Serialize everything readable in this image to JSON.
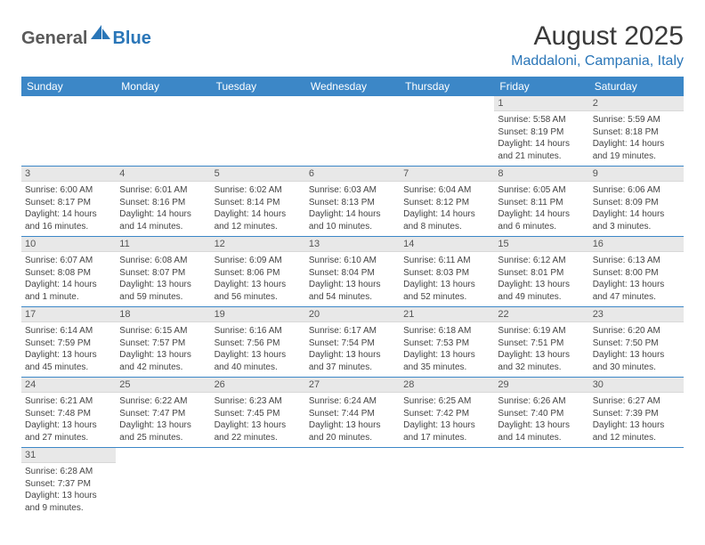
{
  "logo": {
    "text_dark": "General",
    "text_blue": "Blue"
  },
  "title": "August 2025",
  "location": "Maddaloni, Campania, Italy",
  "colors": {
    "header_bg": "#3c87c7",
    "header_fg": "#ffffff",
    "daynum_bg": "#e8e8e8",
    "row_border": "#3c87c7",
    "accent_blue": "#2a76b8",
    "logo_dark": "#5a5a5a"
  },
  "day_headers": [
    "Sunday",
    "Monday",
    "Tuesday",
    "Wednesday",
    "Thursday",
    "Friday",
    "Saturday"
  ],
  "weeks": [
    [
      {
        "day": "",
        "sunrise": "",
        "sunset": "",
        "daylight": ""
      },
      {
        "day": "",
        "sunrise": "",
        "sunset": "",
        "daylight": ""
      },
      {
        "day": "",
        "sunrise": "",
        "sunset": "",
        "daylight": ""
      },
      {
        "day": "",
        "sunrise": "",
        "sunset": "",
        "daylight": ""
      },
      {
        "day": "",
        "sunrise": "",
        "sunset": "",
        "daylight": ""
      },
      {
        "day": "1",
        "sunrise": "Sunrise: 5:58 AM",
        "sunset": "Sunset: 8:19 PM",
        "daylight": "Daylight: 14 hours and 21 minutes."
      },
      {
        "day": "2",
        "sunrise": "Sunrise: 5:59 AM",
        "sunset": "Sunset: 8:18 PM",
        "daylight": "Daylight: 14 hours and 19 minutes."
      }
    ],
    [
      {
        "day": "3",
        "sunrise": "Sunrise: 6:00 AM",
        "sunset": "Sunset: 8:17 PM",
        "daylight": "Daylight: 14 hours and 16 minutes."
      },
      {
        "day": "4",
        "sunrise": "Sunrise: 6:01 AM",
        "sunset": "Sunset: 8:16 PM",
        "daylight": "Daylight: 14 hours and 14 minutes."
      },
      {
        "day": "5",
        "sunrise": "Sunrise: 6:02 AM",
        "sunset": "Sunset: 8:14 PM",
        "daylight": "Daylight: 14 hours and 12 minutes."
      },
      {
        "day": "6",
        "sunrise": "Sunrise: 6:03 AM",
        "sunset": "Sunset: 8:13 PM",
        "daylight": "Daylight: 14 hours and 10 minutes."
      },
      {
        "day": "7",
        "sunrise": "Sunrise: 6:04 AM",
        "sunset": "Sunset: 8:12 PM",
        "daylight": "Daylight: 14 hours and 8 minutes."
      },
      {
        "day": "8",
        "sunrise": "Sunrise: 6:05 AM",
        "sunset": "Sunset: 8:11 PM",
        "daylight": "Daylight: 14 hours and 6 minutes."
      },
      {
        "day": "9",
        "sunrise": "Sunrise: 6:06 AM",
        "sunset": "Sunset: 8:09 PM",
        "daylight": "Daylight: 14 hours and 3 minutes."
      }
    ],
    [
      {
        "day": "10",
        "sunrise": "Sunrise: 6:07 AM",
        "sunset": "Sunset: 8:08 PM",
        "daylight": "Daylight: 14 hours and 1 minute."
      },
      {
        "day": "11",
        "sunrise": "Sunrise: 6:08 AM",
        "sunset": "Sunset: 8:07 PM",
        "daylight": "Daylight: 13 hours and 59 minutes."
      },
      {
        "day": "12",
        "sunrise": "Sunrise: 6:09 AM",
        "sunset": "Sunset: 8:06 PM",
        "daylight": "Daylight: 13 hours and 56 minutes."
      },
      {
        "day": "13",
        "sunrise": "Sunrise: 6:10 AM",
        "sunset": "Sunset: 8:04 PM",
        "daylight": "Daylight: 13 hours and 54 minutes."
      },
      {
        "day": "14",
        "sunrise": "Sunrise: 6:11 AM",
        "sunset": "Sunset: 8:03 PM",
        "daylight": "Daylight: 13 hours and 52 minutes."
      },
      {
        "day": "15",
        "sunrise": "Sunrise: 6:12 AM",
        "sunset": "Sunset: 8:01 PM",
        "daylight": "Daylight: 13 hours and 49 minutes."
      },
      {
        "day": "16",
        "sunrise": "Sunrise: 6:13 AM",
        "sunset": "Sunset: 8:00 PM",
        "daylight": "Daylight: 13 hours and 47 minutes."
      }
    ],
    [
      {
        "day": "17",
        "sunrise": "Sunrise: 6:14 AM",
        "sunset": "Sunset: 7:59 PM",
        "daylight": "Daylight: 13 hours and 45 minutes."
      },
      {
        "day": "18",
        "sunrise": "Sunrise: 6:15 AM",
        "sunset": "Sunset: 7:57 PM",
        "daylight": "Daylight: 13 hours and 42 minutes."
      },
      {
        "day": "19",
        "sunrise": "Sunrise: 6:16 AM",
        "sunset": "Sunset: 7:56 PM",
        "daylight": "Daylight: 13 hours and 40 minutes."
      },
      {
        "day": "20",
        "sunrise": "Sunrise: 6:17 AM",
        "sunset": "Sunset: 7:54 PM",
        "daylight": "Daylight: 13 hours and 37 minutes."
      },
      {
        "day": "21",
        "sunrise": "Sunrise: 6:18 AM",
        "sunset": "Sunset: 7:53 PM",
        "daylight": "Daylight: 13 hours and 35 minutes."
      },
      {
        "day": "22",
        "sunrise": "Sunrise: 6:19 AM",
        "sunset": "Sunset: 7:51 PM",
        "daylight": "Daylight: 13 hours and 32 minutes."
      },
      {
        "day": "23",
        "sunrise": "Sunrise: 6:20 AM",
        "sunset": "Sunset: 7:50 PM",
        "daylight": "Daylight: 13 hours and 30 minutes."
      }
    ],
    [
      {
        "day": "24",
        "sunrise": "Sunrise: 6:21 AM",
        "sunset": "Sunset: 7:48 PM",
        "daylight": "Daylight: 13 hours and 27 minutes."
      },
      {
        "day": "25",
        "sunrise": "Sunrise: 6:22 AM",
        "sunset": "Sunset: 7:47 PM",
        "daylight": "Daylight: 13 hours and 25 minutes."
      },
      {
        "day": "26",
        "sunrise": "Sunrise: 6:23 AM",
        "sunset": "Sunset: 7:45 PM",
        "daylight": "Daylight: 13 hours and 22 minutes."
      },
      {
        "day": "27",
        "sunrise": "Sunrise: 6:24 AM",
        "sunset": "Sunset: 7:44 PM",
        "daylight": "Daylight: 13 hours and 20 minutes."
      },
      {
        "day": "28",
        "sunrise": "Sunrise: 6:25 AM",
        "sunset": "Sunset: 7:42 PM",
        "daylight": "Daylight: 13 hours and 17 minutes."
      },
      {
        "day": "29",
        "sunrise": "Sunrise: 6:26 AM",
        "sunset": "Sunset: 7:40 PM",
        "daylight": "Daylight: 13 hours and 14 minutes."
      },
      {
        "day": "30",
        "sunrise": "Sunrise: 6:27 AM",
        "sunset": "Sunset: 7:39 PM",
        "daylight": "Daylight: 13 hours and 12 minutes."
      }
    ],
    [
      {
        "day": "31",
        "sunrise": "Sunrise: 6:28 AM",
        "sunset": "Sunset: 7:37 PM",
        "daylight": "Daylight: 13 hours and 9 minutes."
      },
      {
        "day": "",
        "sunrise": "",
        "sunset": "",
        "daylight": ""
      },
      {
        "day": "",
        "sunrise": "",
        "sunset": "",
        "daylight": ""
      },
      {
        "day": "",
        "sunrise": "",
        "sunset": "",
        "daylight": ""
      },
      {
        "day": "",
        "sunrise": "",
        "sunset": "",
        "daylight": ""
      },
      {
        "day": "",
        "sunrise": "",
        "sunset": "",
        "daylight": ""
      },
      {
        "day": "",
        "sunrise": "",
        "sunset": "",
        "daylight": ""
      }
    ]
  ]
}
